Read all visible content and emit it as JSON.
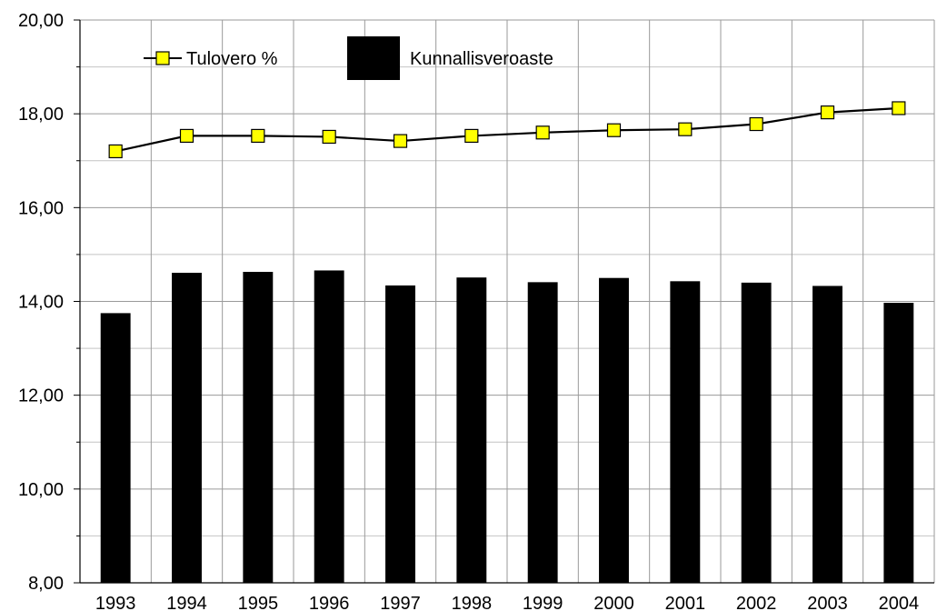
{
  "chart_data": {
    "type": "bar",
    "categories": [
      "1993",
      "1994",
      "1995",
      "1996",
      "1997",
      "1998",
      "1999",
      "2000",
      "2001",
      "2002",
      "2003",
      "2004"
    ],
    "series": [
      {
        "name": "Kunnallisveroaste",
        "type": "bar",
        "color": "#000000",
        "values": [
          13.75,
          14.61,
          14.63,
          14.66,
          14.34,
          14.51,
          14.41,
          14.5,
          14.43,
          14.4,
          14.33,
          13.97
        ]
      },
      {
        "name": "Tulovero %",
        "type": "line",
        "color": "#000000",
        "marker_color": "#ffff00",
        "values": [
          17.2,
          17.53,
          17.53,
          17.51,
          17.42,
          17.53,
          17.6,
          17.65,
          17.67,
          17.78,
          18.03,
          18.12
        ]
      }
    ],
    "y_ticks": [
      "8,00",
      "10,00",
      "12,00",
      "14,00",
      "16,00",
      "18,00",
      "20,00"
    ],
    "ylim": [
      8,
      20
    ],
    "title": "",
    "xlabel": "",
    "ylabel": "",
    "grid": true,
    "legend": [
      {
        "label": "Tulovero %",
        "icon": "line-square-marker"
      },
      {
        "label": "Kunnallisveroaste",
        "icon": "black-square"
      }
    ],
    "legend_position": "top-left"
  }
}
